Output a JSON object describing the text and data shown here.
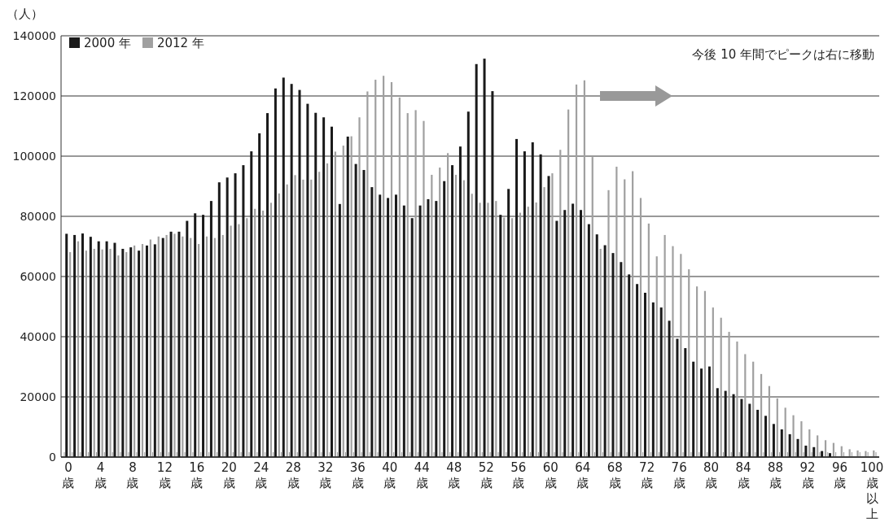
{
  "chart_data": {
    "type": "bar",
    "ylabel": "（人）",
    "categories": [
      "0歳",
      null,
      null,
      null,
      "4歳",
      null,
      null,
      null,
      "8歳",
      null,
      null,
      null,
      "12歳",
      null,
      null,
      null,
      "16歳",
      null,
      null,
      null,
      "20歳",
      null,
      null,
      null,
      "24歳",
      null,
      null,
      null,
      "28歳",
      null,
      null,
      null,
      "32歳",
      null,
      null,
      null,
      "36歳",
      null,
      null,
      null,
      "40歳",
      null,
      null,
      null,
      "44歳",
      null,
      null,
      null,
      "48歳",
      null,
      null,
      null,
      "52歳",
      null,
      null,
      null,
      "56歳",
      null,
      null,
      null,
      "60歳",
      null,
      null,
      null,
      "64歳",
      null,
      null,
      null,
      "68歳",
      null,
      null,
      null,
      "72歳",
      null,
      null,
      null,
      "76歳",
      null,
      null,
      null,
      "80歳",
      null,
      null,
      null,
      "84歳",
      null,
      null,
      null,
      "88歳",
      null,
      null,
      null,
      "92歳",
      null,
      null,
      null,
      "96歳",
      null,
      null,
      null,
      "100歳以上"
    ],
    "series": [
      {
        "name": "2000 年",
        "color": "#1a1a1a",
        "values": [
          74200,
          73800,
          74300,
          73200,
          71700,
          71700,
          71200,
          69200,
          69700,
          68600,
          70300,
          70700,
          72800,
          74900,
          74900,
          78500,
          81000,
          80500,
          85100,
          91300,
          92900,
          94300,
          97000,
          101600,
          107600,
          114300,
          122500,
          126100,
          124000,
          122000,
          117400,
          114400,
          112900,
          109800,
          84100,
          106500,
          97400,
          95400,
          89700,
          87200,
          86100,
          87200,
          83600,
          79400,
          83600,
          85700,
          85100,
          91700,
          97000,
          103200,
          114800,
          130600,
          132400,
          121600,
          80500,
          89100,
          105700,
          101600,
          104600,
          100600,
          93400,
          78500,
          82100,
          84200,
          82100,
          77400,
          74000,
          70400,
          67800,
          64800,
          60700,
          57500,
          54600,
          51400,
          49700,
          45300,
          39300,
          36200,
          31700,
          29400,
          30100,
          22900,
          22000,
          20900,
          19300,
          17700,
          15700,
          13700,
          11000,
          9200,
          7600,
          6000,
          3800,
          3300,
          2000,
          1300,
          null,
          null,
          null,
          null,
          null
        ]
      },
      {
        "name": "2012 年",
        "color": "#a0a0a0",
        "values": [
          68100,
          71700,
          68600,
          69200,
          69000,
          69200,
          67000,
          68100,
          70300,
          70800,
          72300,
          73300,
          73800,
          74200,
          73300,
          72800,
          70800,
          73300,
          72800,
          73800,
          76900,
          77400,
          79400,
          82500,
          81900,
          84500,
          87600,
          90600,
          93700,
          92200,
          92200,
          94800,
          97600,
          101500,
          103500,
          106600,
          112900,
          121500,
          125400,
          126700,
          124600,
          119500,
          114300,
          115300,
          111700,
          93800,
          96200,
          101000,
          93800,
          92000,
          87500,
          84500,
          84500,
          85100,
          79600,
          79400,
          81200,
          83200,
          84600,
          89700,
          94300,
          102100,
          115500,
          123800,
          125200,
          99700,
          69200,
          88700,
          96500,
          92300,
          95000,
          86100,
          77600,
          66700,
          73800,
          70100,
          67500,
          62400,
          56700,
          55200,
          49700,
          46300,
          41600,
          38400,
          34200,
          31700,
          27600,
          23600,
          19500,
          16400,
          13900,
          11900,
          9200,
          7200,
          5600,
          4700,
          3600,
          2600,
          2200,
          2000,
          2200
        ]
      }
    ],
    "ylim": [
      0,
      140000
    ],
    "yticks": [
      0,
      20000,
      40000,
      60000,
      80000,
      100000,
      120000,
      140000
    ],
    "grid": "y",
    "legend": "top left",
    "annotations": [
      "今後 10 年間でピークは右に移動"
    ]
  }
}
